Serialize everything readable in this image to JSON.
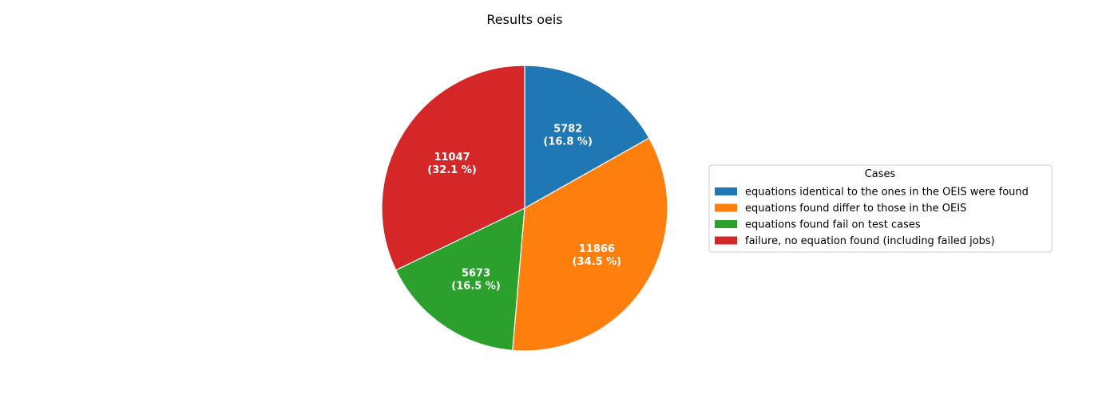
{
  "chart_data": {
    "type": "pie",
    "title": "Results oeis",
    "legend_title": "Cases",
    "legend_placement": "center-right",
    "start_angle": "top",
    "direction": "clockwise",
    "labels": [
      "equations identical to the ones in the OEIS were found",
      "equations found differ to those in the OEIS",
      "equations found fail on test cases",
      "failure, no equation found (including failed jobs)"
    ],
    "values": [
      5782,
      11866,
      5673,
      11047
    ],
    "percentages": [
      "16.8 %",
      "34.5 %",
      "16.5 %",
      "32.1 %"
    ],
    "colors": [
      "#1f77b4",
      "#ff7f0e",
      "#2ca02c",
      "#d62728"
    ],
    "edge_color": "#ffffff"
  }
}
